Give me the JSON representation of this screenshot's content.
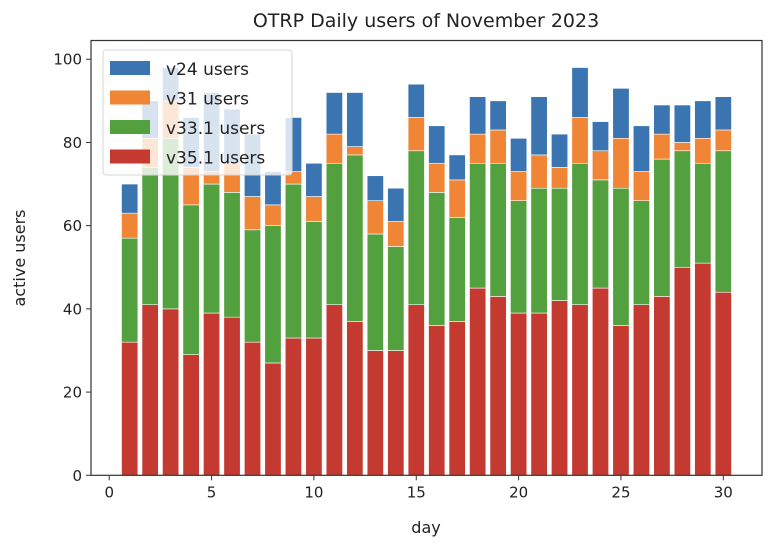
{
  "chart_data": {
    "type": "bar",
    "stacked": true,
    "title": "OTRP Daily users of November 2023",
    "xlabel": "day",
    "ylabel": "active users",
    "xlim": [
      -0.89,
      31.89
    ],
    "ylim": [
      0,
      104.5
    ],
    "xticks": [
      0,
      5,
      10,
      15,
      20,
      25,
      30
    ],
    "yticks": [
      0,
      20,
      40,
      60,
      80,
      100
    ],
    "grid": false,
    "legend_position": "top-left",
    "x": [
      1,
      2,
      3,
      4,
      5,
      6,
      7,
      8,
      9,
      10,
      11,
      12,
      13,
      14,
      15,
      16,
      17,
      18,
      19,
      20,
      21,
      22,
      23,
      24,
      25,
      26,
      27,
      28,
      29,
      30
    ],
    "series": [
      {
        "name": "v35.1 users",
        "color": "#c43a31",
        "values": [
          32,
          41,
          40,
          29,
          39,
          38,
          32,
          27,
          33,
          33,
          41,
          37,
          30,
          30,
          41,
          36,
          37,
          45,
          43,
          39,
          39,
          42,
          41,
          45,
          36,
          41,
          43,
          50,
          51,
          44
        ]
      },
      {
        "name": "v33.1 users",
        "color": "#53a03f",
        "values": [
          25,
          33,
          41,
          36,
          31,
          30,
          27,
          33,
          37,
          28,
          34,
          40,
          28,
          25,
          37,
          32,
          25,
          30,
          32,
          27,
          30,
          27,
          34,
          26,
          33,
          25,
          33,
          28,
          24,
          34
        ]
      },
      {
        "name": "v31 users",
        "color": "#ef8535",
        "values": [
          6,
          7,
          9,
          9,
          3,
          7,
          8,
          5,
          3,
          6,
          7,
          2,
          8,
          6,
          8,
          7,
          9,
          7,
          8,
          7,
          8,
          5,
          11,
          7,
          12,
          7,
          6,
          2,
          6,
          5
        ]
      },
      {
        "name": "v24 users",
        "color": "#3a74b1",
        "values": [
          7,
          9,
          8,
          12,
          19,
          13,
          15,
          8,
          13,
          8,
          10,
          13,
          6,
          8,
          8,
          9,
          6,
          9,
          7,
          8,
          14,
          8,
          12,
          7,
          12,
          11,
          7,
          9,
          9,
          8
        ]
      }
    ],
    "legend_order": [
      "v24 users",
      "v31 users",
      "v33.1 users",
      "v35.1 users"
    ]
  }
}
